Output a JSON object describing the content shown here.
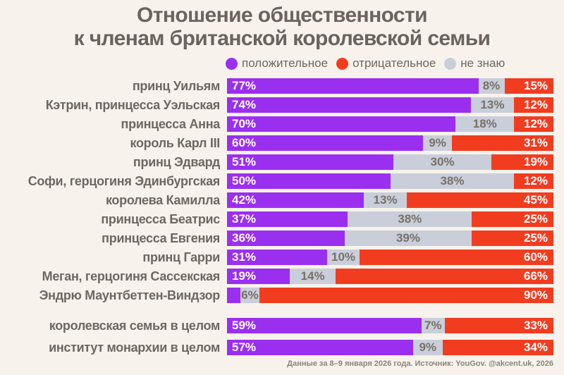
{
  "page": {
    "title_line1": "Отношение общественности",
    "title_line2": "к членам британской королевской семьи",
    "footer": "Данные за 8–9 января 2026 года. Источник: YouGov. @akcent.uk, 2026"
  },
  "colors": {
    "background": "#F7F3EC",
    "positive": "#9B2FF0",
    "negative": "#F23C1F",
    "dont_know": "#C9CEDA",
    "title_text": "#6B635C",
    "label_text": "#6E675F",
    "neutral_value_text": "#787068",
    "value_text": "#FFFFFF",
    "footer_text": "#8C847B"
  },
  "legend": [
    {
      "key": "positive",
      "label": "положительное"
    },
    {
      "key": "negative",
      "label": "отрицательное"
    },
    {
      "key": "dont_know",
      "label": "не знаю"
    }
  ],
  "chart_data": {
    "type": "bar",
    "orientation": "horizontal",
    "stacked": true,
    "unit": "%",
    "x_range": [
      0,
      100
    ],
    "legend_position": "top",
    "segment_order": [
      "positive",
      "dont_know",
      "negative"
    ],
    "title": "Отношение общественности к членам британской королевской семьи",
    "series_names": {
      "positive": "положительное",
      "dont_know": "не знаю",
      "negative": "отрицательное"
    },
    "groups": [
      {
        "id": "members",
        "rows": [
          {
            "category": "принц Уильям",
            "positive": 77,
            "dont_know": 8,
            "negative": 15,
            "labels": {
              "positive": "77%",
              "dont_know": "8%",
              "negative": "15%"
            }
          },
          {
            "category": "Кэтрин, принцесса Уэльская",
            "positive": 74,
            "dont_know": 13,
            "negative": 12,
            "labels": {
              "positive": "74%",
              "dont_know": "13%",
              "negative": "12%"
            }
          },
          {
            "category": "принцесса Анна",
            "positive": 70,
            "dont_know": 18,
            "negative": 12,
            "labels": {
              "positive": "70%",
              "dont_know": "18%",
              "negative": "12%"
            }
          },
          {
            "category": "король Карл III",
            "positive": 60,
            "dont_know": 9,
            "negative": 31,
            "labels": {
              "positive": "60%",
              "dont_know": "9%",
              "negative": "31%"
            }
          },
          {
            "category": "принц Эдвард",
            "positive": 51,
            "dont_know": 30,
            "negative": 19,
            "labels": {
              "positive": "51%",
              "dont_know": "30%",
              "negative": "19%"
            }
          },
          {
            "category": "Софи, герцогиня Эдинбургская",
            "positive": 50,
            "dont_know": 38,
            "negative": 12,
            "labels": {
              "positive": "50%",
              "dont_know": "38%",
              "negative": "12%"
            }
          },
          {
            "category": "королева Камилла",
            "positive": 42,
            "dont_know": 13,
            "negative": 45,
            "labels": {
              "positive": "42%",
              "dont_know": "13%",
              "negative": "45%"
            }
          },
          {
            "category": "принцесса Беатрис",
            "positive": 37,
            "dont_know": 38,
            "negative": 25,
            "labels": {
              "positive": "37%",
              "dont_know": "38%",
              "negative": "25%"
            }
          },
          {
            "category": "принцесса Евгения",
            "positive": 36,
            "dont_know": 39,
            "negative": 25,
            "labels": {
              "positive": "36%",
              "dont_know": "39%",
              "negative": "25%"
            }
          },
          {
            "category": "принц Гарри",
            "positive": 31,
            "dont_know": 10,
            "negative": 60,
            "labels": {
              "positive": "31%",
              "dont_know": "10%",
              "negative": "60%"
            }
          },
          {
            "category": "Меган, герцогиня Сассекская",
            "positive": 19,
            "dont_know": 14,
            "negative": 66,
            "labels": {
              "positive": "19%",
              "dont_know": "14%",
              "negative": "66%"
            }
          },
          {
            "category": "Эндрю Маунтбеттен-Виндзор",
            "positive": 4,
            "dont_know": 6,
            "negative": 90,
            "labels": {
              "positive": "",
              "dont_know": "6%",
              "negative": "90%"
            }
          }
        ]
      },
      {
        "id": "overall",
        "rows": [
          {
            "category": "королевская семья в целом",
            "positive": 59,
            "dont_know": 7,
            "negative": 33,
            "labels": {
              "positive": "59%",
              "dont_know": "7%",
              "negative": "33%"
            }
          },
          {
            "category": "институт монархии в целом",
            "positive": 57,
            "dont_know": 9,
            "negative": 34,
            "labels": {
              "positive": "57%",
              "dont_know": "9%",
              "negative": "34%"
            }
          }
        ]
      }
    ]
  }
}
